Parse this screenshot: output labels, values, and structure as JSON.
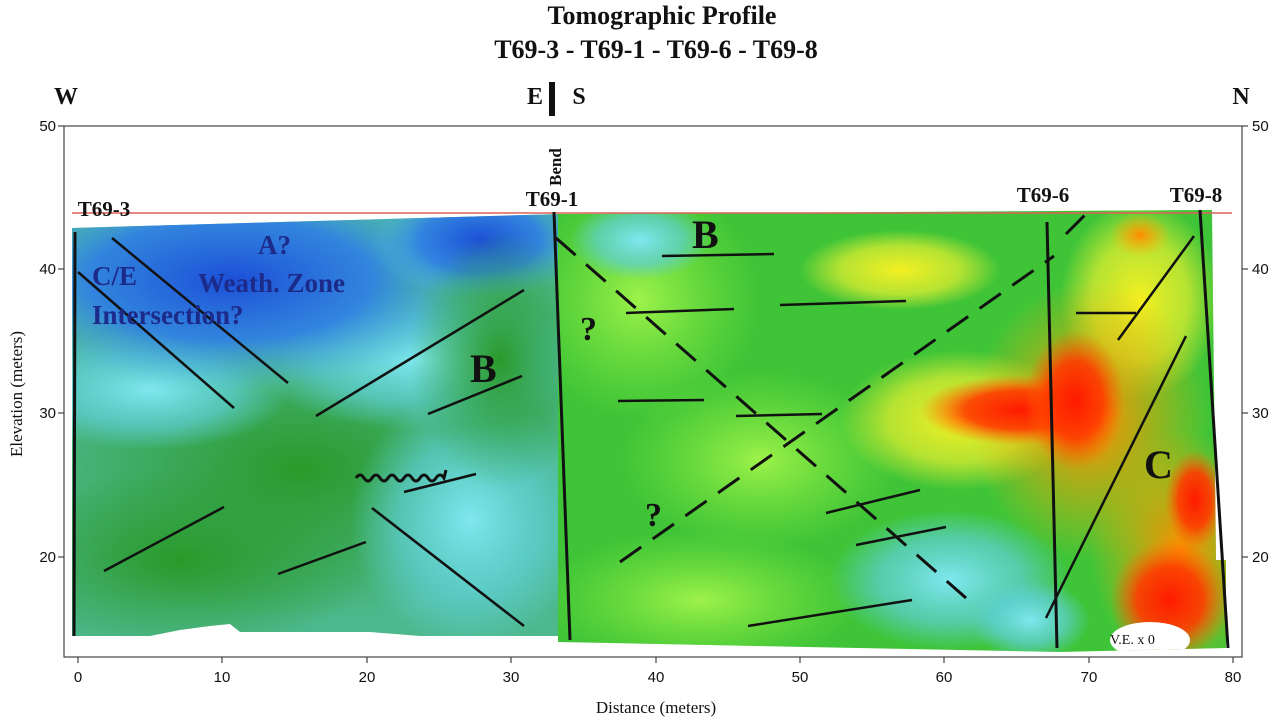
{
  "title": "Tomographic Profile",
  "subtitle": "T69-3 - T69-1 - T69-6 - T69-8",
  "directions": {
    "left": "W",
    "center_left": "E",
    "center_right": "S",
    "right": "N"
  },
  "bend_label": "Bend",
  "boreholes": [
    "T69-3",
    "T69-1",
    "T69-6",
    "T69-8"
  ],
  "axes": {
    "xlabel": "Distance (meters)",
    "ylabel": "Elevation (meters)",
    "x_ticks": [
      "0",
      "10",
      "20",
      "30",
      "40",
      "50",
      "60",
      "70",
      "80"
    ],
    "y_ticks": [
      "50",
      "40",
      "30",
      "20"
    ]
  },
  "annotations": {
    "ce": "C/E",
    "intersection": "Intersection?",
    "a": "A?",
    "weath": "Weath. Zone",
    "b1": "B",
    "b2": "B",
    "c": "C",
    "q1": "?",
    "q2": "?",
    "ve": "V.E. x 0"
  },
  "colors": {
    "low_velocity": "#1c4fd8",
    "mid_velocity": "#2ea82e",
    "high_velocity": "#ff1a00",
    "surface_line": "#e0605a"
  }
}
